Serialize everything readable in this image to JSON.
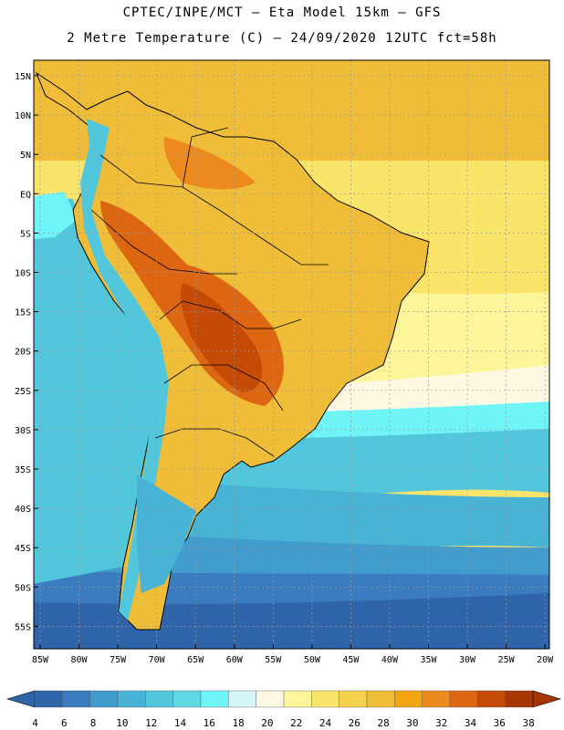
{
  "title_line1": "CPTEC/INPE/MCT –  Eta Model 15km – GFS",
  "title_line2": "2 Metre Temperature (C) – 24/09/2020 12UTC fct=58h",
  "lat_labels": [
    "15N",
    "10N",
    "5N",
    "EQ",
    "5S",
    "10S",
    "15S",
    "20S",
    "25S",
    "30S",
    "35S",
    "40S",
    "45S",
    "50S",
    "55S"
  ],
  "lon_labels": [
    "85W",
    "80W",
    "75W",
    "70W",
    "65W",
    "60W",
    "55W",
    "50W",
    "45W",
    "40W",
    "35W",
    "30W",
    "25W",
    "20W"
  ],
  "colorbar": {
    "labels": [
      "4",
      "6",
      "8",
      "10",
      "12",
      "14",
      "16",
      "18",
      "20",
      "22",
      "24",
      "26",
      "28",
      "30",
      "32",
      "34",
      "36",
      "38"
    ],
    "colors": [
      "#2f64a8",
      "#3a7cbf",
      "#419bcc",
      "#49b3d6",
      "#52c7dc",
      "#5ed9e4",
      "#6ff4f8",
      "#d4f6fb",
      "#fdf8e2",
      "#fdf59a",
      "#fbe46a",
      "#f5d14e",
      "#efbd38",
      "#f1a60f",
      "#ec8a1e",
      "#dd6612",
      "#c44a05",
      "#a63604"
    ]
  },
  "regions": [
    {
      "name": "ocean-atlantic-south",
      "color": "#2f64a8"
    },
    {
      "name": "ocean-band-8-10",
      "color": "#419bcc"
    },
    {
      "name": "ocean-band-12",
      "color": "#49b3d6"
    },
    {
      "name": "ocean-band-14-18",
      "color": "#6ff4f8"
    },
    {
      "name": "ocean-band-20-22",
      "color": "#fdf8e2"
    },
    {
      "name": "ocean-band-24-26",
      "color": "#fbe46a"
    },
    {
      "name": "land-warm",
      "color": "#efbd38"
    },
    {
      "name": "land-hot",
      "color": "#dd6612"
    },
    {
      "name": "land-hottest",
      "color": "#c44a05"
    }
  ]
}
